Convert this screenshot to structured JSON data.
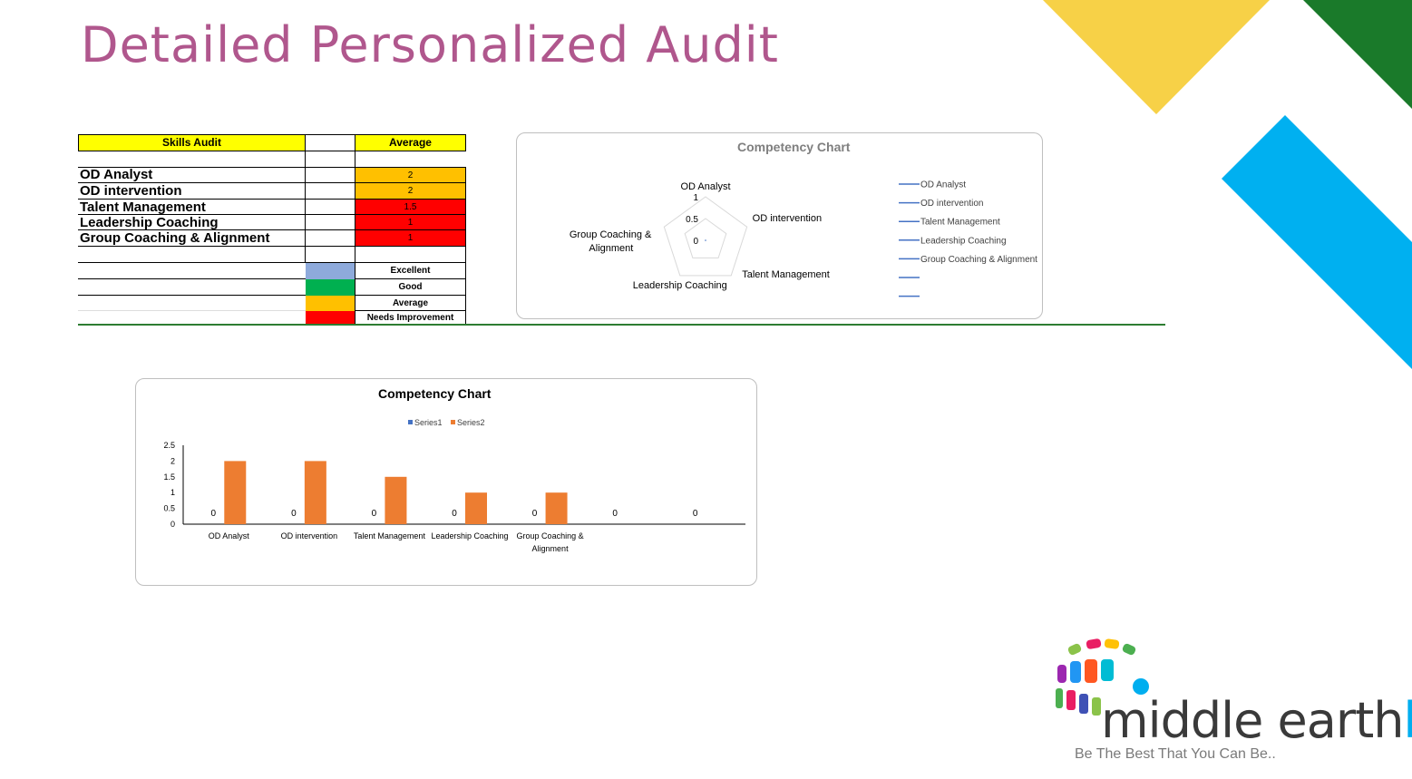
{
  "page": {
    "title": "Detailed Personalized Audit"
  },
  "skills_table": {
    "header_skill": "Skills Audit",
    "header_average": "Average",
    "rows": [
      {
        "skill": "OD Analyst",
        "score": "2",
        "color": "#ffc000"
      },
      {
        "skill": "OD intervention",
        "score": "2",
        "color": "#ffc000"
      },
      {
        "skill": "Talent Management",
        "score": "1.5",
        "color": "#ff0000"
      },
      {
        "skill": "Leadership Coaching",
        "score": "1",
        "color": "#ff0000"
      },
      {
        "skill": "Group Coaching & Alignment",
        "score": "1",
        "color": "#ff0000"
      }
    ],
    "legend": [
      {
        "label": "Excellent",
        "color": "#8eaadb"
      },
      {
        "label": "Good",
        "color": "#00b050"
      },
      {
        "label": "Average",
        "color": "#ffc000"
      },
      {
        "label": "Needs Improvement",
        "color": "#ff0000"
      }
    ]
  },
  "chart_data": [
    {
      "type": "radar",
      "title": "Competency  Chart",
      "categories": [
        "OD Analyst",
        "OD intervention",
        "Talent Management",
        "Leadership Coaching",
        "Group Coaching & Alignment"
      ],
      "axis_ticks": [
        "0",
        "0.5",
        "1"
      ],
      "rlim": [
        0,
        1
      ],
      "legend_position": "right",
      "legend": [
        "OD Analyst",
        "OD intervention",
        "Talent Management",
        "Leadership Coaching",
        "Group Coaching & Alignment",
        "",
        ""
      ],
      "series_color": "#4472c4"
    },
    {
      "type": "bar",
      "title": "Competency  Chart",
      "categories": [
        "OD Analyst",
        "OD intervention",
        "Talent Management",
        "Leadership Coaching",
        "Group Coaching & Alignment",
        "",
        ""
      ],
      "series": [
        {
          "name": "Series1",
          "values": [
            0,
            0,
            0,
            0,
            0,
            0,
            0
          ],
          "color": "#4472c4",
          "data_labels": [
            "0",
            "0",
            "0",
            "0",
            "0",
            "0",
            "0"
          ]
        },
        {
          "name": "Series2",
          "values": [
            2,
            2,
            1.5,
            1,
            1,
            0,
            0
          ],
          "color": "#ed7d31"
        }
      ],
      "yticks": [
        "0",
        "0.5",
        "1",
        "1.5",
        "2",
        "2.5"
      ],
      "ylim": [
        0,
        2.5
      ],
      "legend_position": "top",
      "grid": false
    }
  ],
  "logo": {
    "text_dark": "middle earth",
    "text_accent": "hr",
    "tagline": "Be The Best That You Can Be..",
    "accent_color": "#00aeef"
  },
  "decor": {
    "yellow": "#f7d147",
    "green": "#1a7a2a",
    "blue": "#00b0f0",
    "title_color": "#b0578d"
  }
}
